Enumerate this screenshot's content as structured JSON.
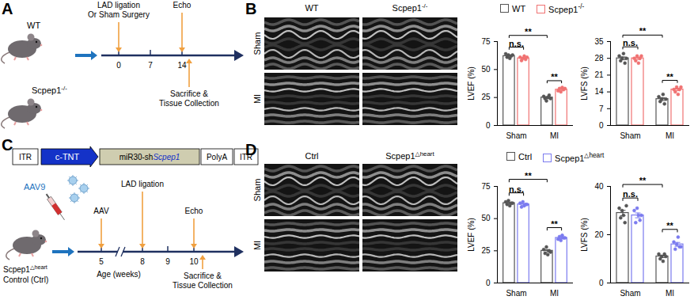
{
  "panels": {
    "A": {
      "letter": "A",
      "groups": [
        "WT",
        "Scpep1-/-"
      ],
      "timeline": {
        "ticks": [
          0,
          7,
          14
        ]
      },
      "events": [
        {
          "text": [
            "LAD ligation",
            "Or Sham Surgery"
          ],
          "at": 0,
          "side": "above"
        },
        {
          "text": [
            "Echo"
          ],
          "at": 14,
          "side": "above"
        },
        {
          "text": [
            "Sacrifice &",
            "Tissue Collection"
          ],
          "at": 14,
          "side": "below"
        }
      ]
    },
    "B": {
      "letter": "B",
      "columns": [
        "WT",
        "Scpep1-/-"
      ],
      "rows": [
        "Sham",
        "MI"
      ]
    },
    "C": {
      "letter": "C",
      "construct": [
        "ITR",
        "c-TNT",
        [
          "miR30-sh",
          "Scpep1"
        ],
        "PolyA",
        "ITR"
      ],
      "vector": "AAV9",
      "groups": [
        "Scpep1△heart",
        "Control (Ctrl)"
      ],
      "timeline": {
        "ticks": [
          5,
          8,
          9,
          10
        ],
        "label": "Age (weeks)"
      },
      "events": [
        {
          "text": [
            "AAV"
          ],
          "at": 5,
          "side": "above"
        },
        {
          "text": [
            "LAD ligation"
          ],
          "at": 8,
          "side": "above"
        },
        {
          "text": [
            "Echo"
          ],
          "at": 10,
          "side": "above"
        },
        {
          "text": [
            "Sacrifice &",
            "Tissue Collection"
          ],
          "at": 10,
          "side": "below"
        }
      ]
    },
    "D": {
      "letter": "D",
      "columns": [
        "Ctrl",
        "Scpep1△heart"
      ],
      "rows": [
        "Sham",
        "MI"
      ]
    }
  },
  "chart_data": [
    {
      "type": "bar",
      "ylabel": "LVEF (%)",
      "categories": [
        "Sham",
        "MI"
      ],
      "ylim": [
        0,
        75
      ],
      "yticks": [
        0,
        25,
        50,
        75
      ],
      "legend": "top",
      "series": [
        {
          "name": "WT",
          "color": "#555555",
          "values": [
            62,
            25
          ],
          "errors": [
            0.7,
            0.8
          ],
          "points": [
            [
              64,
              61,
              63,
              60,
              62,
              63
            ],
            [
              26,
              24,
              22,
              25,
              27,
              24
            ]
          ]
        },
        {
          "name": "Scpep1-/-",
          "color": "#f07272",
          "values": [
            60,
            32
          ],
          "errors": [
            0.6,
            0.6
          ],
          "points": [
            [
              61,
              58,
              60,
              62,
              59,
              61
            ],
            [
              31,
              33,
              30,
              34,
              32,
              33
            ]
          ]
        }
      ],
      "annotations": [
        {
          "text": "n.s.",
          "between": [
            [
              0,
              0
            ],
            [
              0,
              1
            ]
          ]
        },
        {
          "text": "**",
          "between": [
            [
              1,
              0
            ],
            [
              1,
              1
            ]
          ]
        },
        {
          "text": "**",
          "between": [
            [
              0,
              0
            ],
            [
              1,
              0
            ]
          ]
        }
      ]
    },
    {
      "type": "bar",
      "ylabel": "LVFS (%)",
      "categories": [
        "Sham",
        "MI"
      ],
      "ylim": [
        0,
        35
      ],
      "yticks": [
        0,
        7,
        14,
        21,
        28,
        35
      ],
      "series": [
        {
          "name": "WT",
          "color": "#555555",
          "values": [
            28,
            11
          ],
          "errors": [
            0.6,
            0.6
          ],
          "points": [
            [
              29,
              27,
              28,
              30,
              26,
              28
            ],
            [
              12,
              10,
              11,
              13,
              9,
              11
            ]
          ]
        },
        {
          "name": "Scpep1-/-",
          "color": "#f07272",
          "values": [
            28,
            15
          ],
          "errors": [
            0.5,
            0.5
          ],
          "points": [
            [
              28,
              27,
              29,
              26,
              28,
              29
            ],
            [
              15,
              14,
              16,
              13,
              15,
              16
            ]
          ]
        }
      ],
      "annotations": [
        {
          "text": "n.s.",
          "between": [
            [
              0,
              0
            ],
            [
              0,
              1
            ]
          ]
        },
        {
          "text": "**",
          "between": [
            [
              1,
              0
            ],
            [
              1,
              1
            ]
          ]
        },
        {
          "text": "**",
          "between": [
            [
              0,
              0
            ],
            [
              1,
              0
            ]
          ]
        }
      ]
    },
    {
      "type": "bar",
      "ylabel": "LVEF (%)",
      "categories": [
        "Sham",
        "MI"
      ],
      "ylim": [
        0,
        75
      ],
      "yticks": [
        0,
        25,
        50,
        75
      ],
      "legend": "top",
      "series": [
        {
          "name": "Ctrl",
          "color": "#555555",
          "values": [
            62,
            25
          ],
          "errors": [
            0.6,
            0.9
          ],
          "points": [
            [
              63,
              61,
              64,
              60,
              62,
              62
            ],
            [
              26,
              23,
              28,
              22,
              25,
              24
            ]
          ]
        },
        {
          "name": "Scpep1△heart",
          "color": "#7b7bef",
          "values": [
            61,
            35
          ],
          "errors": [
            0.6,
            0.6
          ],
          "points": [
            [
              62,
              59,
              63,
              60,
              61,
              61
            ],
            [
              34,
              36,
              33,
              37,
              35,
              35
            ]
          ]
        }
      ],
      "annotations": [
        {
          "text": "n.s.",
          "between": [
            [
              0,
              0
            ],
            [
              0,
              1
            ]
          ]
        },
        {
          "text": "**",
          "between": [
            [
              1,
              0
            ],
            [
              1,
              1
            ]
          ]
        },
        {
          "text": "**",
          "between": [
            [
              0,
              0
            ],
            [
              1,
              0
            ]
          ]
        }
      ]
    },
    {
      "type": "bar",
      "ylabel": "LVFS (%)",
      "categories": [
        "Sham",
        "MI"
      ],
      "ylim": [
        0,
        40
      ],
      "yticks": [
        0,
        20,
        40
      ],
      "series": [
        {
          "name": "Ctrl",
          "color": "#555555",
          "values": [
            29,
            11
          ],
          "errors": [
            1.1,
            0.5
          ],
          "points": [
            [
              31,
              27,
              30,
              28,
              25,
              32
            ],
            [
              12,
              10,
              11,
              9,
              12,
              11
            ]
          ]
        },
        {
          "name": "Scpep1△heart",
          "color": "#7b7bef",
          "values": [
            28,
            16
          ],
          "errors": [
            1.0,
            0.8
          ],
          "points": [
            [
              30,
              25,
              31,
              28,
              26,
              28
            ],
            [
              17,
              14,
              16,
              19,
              15,
              15
            ]
          ]
        }
      ],
      "annotations": [
        {
          "text": "n.s.",
          "between": [
            [
              0,
              0
            ],
            [
              0,
              1
            ]
          ]
        },
        {
          "text": "**",
          "between": [
            [
              1,
              0
            ],
            [
              1,
              1
            ]
          ]
        },
        {
          "text": "**",
          "between": [
            [
              0,
              0
            ],
            [
              1,
              0
            ]
          ]
        }
      ]
    }
  ]
}
